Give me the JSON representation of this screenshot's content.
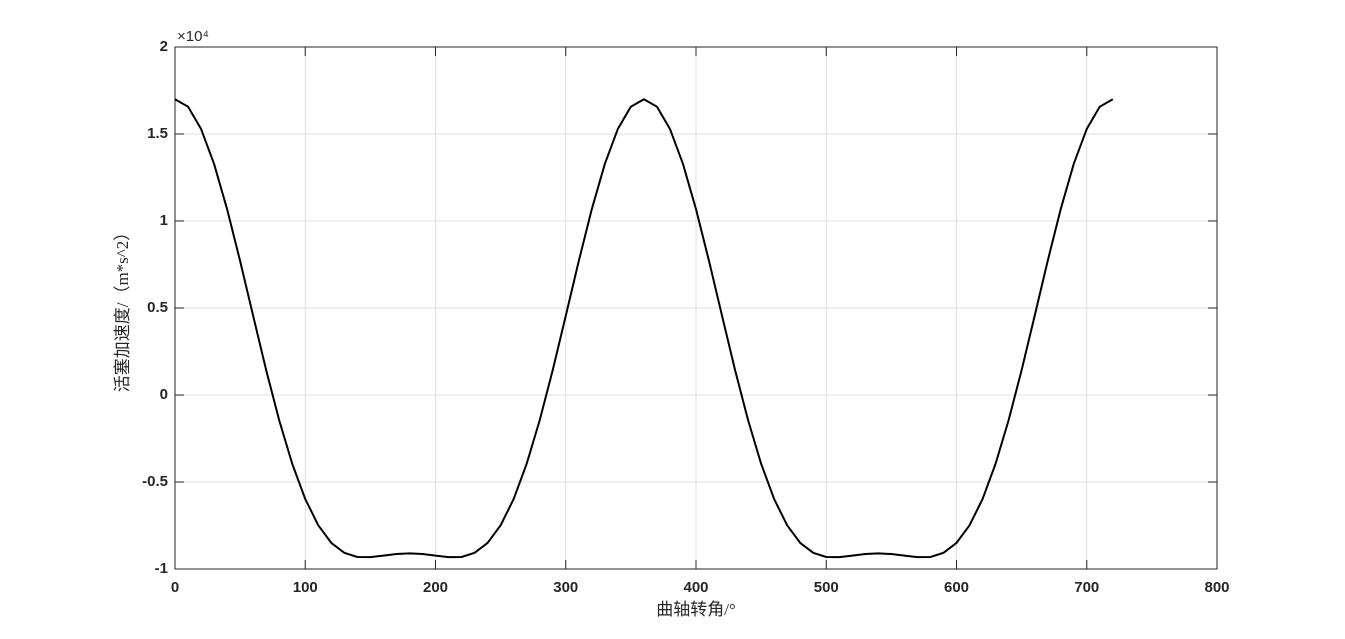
{
  "chart_data": {
    "type": "line",
    "xlabel": "曲轴转角/°",
    "ylabel": "活塞加速度/（m*s^2）",
    "y_exponent_label": "×10⁴",
    "x": [
      0,
      10,
      20,
      30,
      40,
      50,
      60,
      70,
      80,
      90,
      100,
      110,
      120,
      130,
      140,
      150,
      160,
      170,
      180,
      190,
      200,
      210,
      220,
      230,
      240,
      250,
      260,
      270,
      280,
      290,
      300,
      310,
      320,
      330,
      340,
      350,
      360,
      370,
      380,
      390,
      400,
      410,
      420,
      430,
      440,
      450,
      460,
      470,
      480,
      490,
      500,
      510,
      520,
      530,
      540,
      550,
      560,
      570,
      580,
      590,
      600,
      610,
      620,
      630,
      640,
      650,
      660,
      670,
      680,
      690,
      700,
      710,
      720
    ],
    "series": [
      {
        "color": "#000000",
        "values": [
          1.7,
          1.657,
          1.529,
          1.328,
          1.068,
          0.77,
          0.455,
          0.143,
          -0.145,
          -0.395,
          -0.598,
          -0.749,
          -0.85,
          -0.907,
          -0.931,
          -0.932,
          -0.923,
          -0.914,
          -0.91,
          -0.914,
          -0.923,
          -0.932,
          -0.931,
          -0.907,
          -0.85,
          -0.749,
          -0.598,
          -0.395,
          -0.145,
          0.143,
          0.455,
          0.77,
          1.068,
          1.328,
          1.529,
          1.657,
          1.7,
          1.657,
          1.529,
          1.328,
          1.068,
          0.77,
          0.455,
          0.143,
          -0.145,
          -0.395,
          -0.598,
          -0.749,
          -0.85,
          -0.907,
          -0.931,
          -0.932,
          -0.923,
          -0.914,
          -0.91,
          -0.914,
          -0.923,
          -0.932,
          -0.931,
          -0.907,
          -0.85,
          -0.749,
          -0.598,
          -0.395,
          -0.145,
          0.143,
          0.455,
          0.77,
          1.068,
          1.328,
          1.529,
          1.657,
          1.7
        ]
      }
    ],
    "xlim": [
      0,
      800
    ],
    "xticks": [
      0,
      100,
      200,
      300,
      400,
      500,
      600,
      700,
      800
    ],
    "ylim": [
      -1,
      2
    ],
    "yticks": [
      -1,
      -0.5,
      0,
      0.5,
      1,
      1.5,
      2
    ],
    "grid": true
  }
}
